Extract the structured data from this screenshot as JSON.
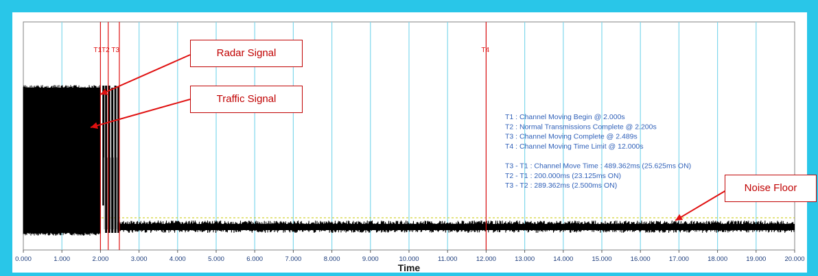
{
  "chart_data": {
    "type": "line",
    "xlabel": "Time",
    "xlim": [
      0,
      20
    ],
    "x_ticks": [
      "0.000",
      "1.000",
      "2.000",
      "3.000",
      "4.000",
      "5.000",
      "6.000",
      "7.000",
      "8.000",
      "9.000",
      "10.000",
      "11.000",
      "12.000",
      "13.000",
      "14.000",
      "15.000",
      "16.000",
      "17.000",
      "18.000",
      "19.000",
      "20.000"
    ],
    "markers": [
      {
        "label": "T1",
        "x": 2.0
      },
      {
        "label": "T2",
        "x": 2.2
      },
      {
        "label": "T3",
        "x": 2.489
      },
      {
        "label": "T4",
        "x": 12.0
      }
    ],
    "marker_labels_cluster": "T1T2 T3",
    "signal_segments": [
      {
        "name_text": "Traffic Signal",
        "x_start": 0.0,
        "x_end": 2.0
      },
      {
        "name_text": "Radar Signal",
        "x_start": 2.0,
        "x_end": 2.5
      },
      {
        "name_text": "Noise Floor",
        "x_start": 2.5,
        "x_end": 20.0
      }
    ],
    "annotations": [
      "T1 : Channel Moving Begin @ 2.000s",
      "T2 : Normal Transmissions Complete @ 2.200s",
      "T3 : Channel Moving Complete @ 2.489s",
      "T4 : Channel Moving Time Limit @ 12.000s",
      "",
      "T3 - T1 : Channel Move Time : 489.362ms (25.625ms ON)",
      "T2 - T1 : 200.000ms (23.125ms ON)",
      "T3 - T2 : 289.362ms (2.500ms ON)"
    ],
    "grid": true,
    "colors": {
      "frame": "#29c6e8",
      "grid": "#7fd7ec",
      "marker": "#e01010",
      "annotation_text": "#2e5fb8",
      "signal": "#000000",
      "threshold": "#c8c800"
    }
  },
  "callouts": {
    "radar": "Radar Signal",
    "traffic": "Traffic Signal",
    "noise": "Noise Floor"
  }
}
